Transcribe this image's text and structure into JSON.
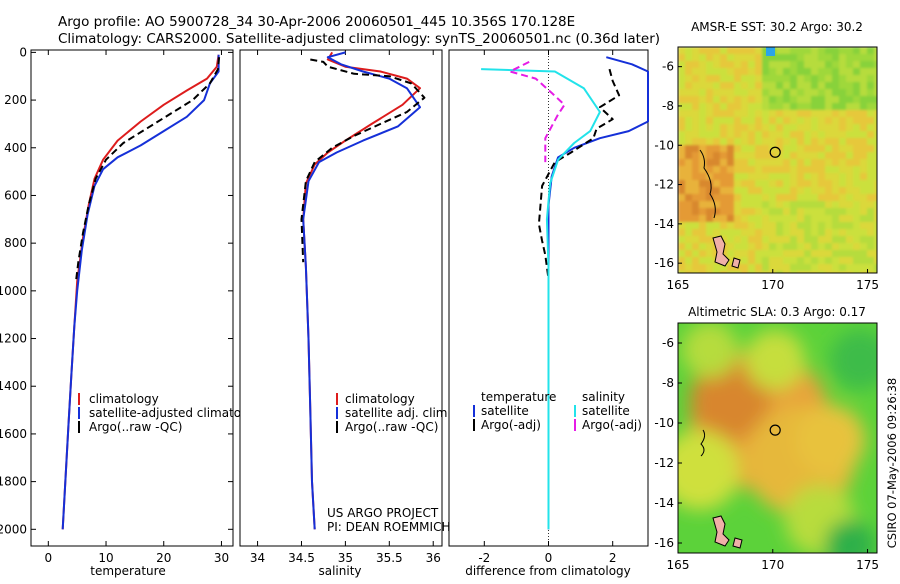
{
  "header": {
    "line1": "Argo profile: AO 5900728_34 30-Apr-2006 20060501_445 10.356S 170.128E",
    "line2": "Climatology: CARS2000. Satellite-adjusted climatology: synTS_20060501.nc (0.36d later)"
  },
  "credit": {
    "project": "US ARGO PROJECT",
    "pi": "PI: DEAN ROEMMICH",
    "stamp": "CSIRO 07-May-2006 09:26:38"
  },
  "colors": {
    "climatology": "#dd1c1c",
    "satellite": "#1530d8",
    "argo": "#000000",
    "sat_salinity": "#22e3ea",
    "argo_salinity": "#e61ce6"
  },
  "chart_data": [
    {
      "type": "line",
      "xlabel": "temperature",
      "xticks": [
        "0",
        "10",
        "20",
        "30"
      ],
      "yticks": [
        "0",
        "200",
        "400",
        "600",
        "800",
        "1000",
        "1200",
        "1400",
        "1600",
        "1800",
        "2000"
      ],
      "xlim": [
        -3,
        32
      ],
      "ylim": [
        2070,
        -10
      ],
      "legend": [
        "climatology",
        "satellite-adjusted climatolog",
        "Argo(..raw -QC)"
      ],
      "series": [
        {
          "name": "climatology",
          "color": "#dd1c1c",
          "dash": false,
          "x": [
            29.5,
            29.2,
            27.5,
            24,
            20,
            16,
            12,
            9.5,
            8,
            7,
            6,
            5,
            4.5,
            4,
            3.5,
            3,
            2.5
          ],
          "y": [
            10,
            60,
            110,
            160,
            220,
            290,
            370,
            450,
            530,
            640,
            780,
            960,
            1150,
            1350,
            1560,
            1780,
            2000
          ]
        },
        {
          "name": "satellite-adjusted climatolog",
          "color": "#1530d8",
          "dash": false,
          "x": [
            29.5,
            29.5,
            28,
            27,
            24,
            20,
            16,
            12,
            9.5,
            8,
            6.8,
            5.8,
            5,
            4.5,
            4,
            3.5,
            3,
            2.5
          ],
          "y": [
            10,
            80,
            130,
            200,
            270,
            330,
            390,
            440,
            490,
            560,
            680,
            830,
            1000,
            1150,
            1350,
            1560,
            1780,
            2000
          ]
        },
        {
          "name": "Argo(..raw -QC)",
          "color": "#000000",
          "dash": true,
          "x": [
            29.6,
            29.4,
            28,
            25,
            21,
            17,
            13,
            10,
            8.2,
            7,
            6,
            5.2,
            4.8
          ],
          "y": [
            20,
            70,
            130,
            200,
            260,
            320,
            380,
            450,
            530,
            640,
            760,
            880,
            960
          ]
        }
      ]
    },
    {
      "type": "line",
      "xlabel": "salinity",
      "xticks": [
        "34",
        "34.5",
        "35",
        "35.5",
        "36"
      ],
      "ylim": [
        2070,
        -10
      ],
      "xlim": [
        33.8,
        36.1
      ],
      "legend": [
        "climatology",
        "satellite adj. clim.",
        "Argo(..raw -QC)"
      ],
      "series": [
        {
          "name": "climatology",
          "color": "#dd1c1c",
          "dash": false,
          "x": [
            34.85,
            34.8,
            35.0,
            35.4,
            35.7,
            35.85,
            35.65,
            35.3,
            35.0,
            34.8,
            34.65,
            34.55,
            34.52,
            34.55,
            34.58,
            34.6,
            34.62,
            34.65
          ],
          "y": [
            0,
            30,
            60,
            80,
            110,
            150,
            220,
            300,
            370,
            420,
            470,
            550,
            700,
            900,
            1200,
            1500,
            1800,
            2000
          ]
        },
        {
          "name": "satellite adj. clim.",
          "color": "#1530d8",
          "dash": false,
          "x": [
            35.0,
            34.8,
            34.95,
            35.2,
            35.5,
            35.7,
            35.85,
            35.6,
            35.2,
            34.9,
            34.7,
            34.58,
            34.52,
            34.55,
            34.58,
            34.6,
            34.62,
            34.65
          ],
          "y": [
            0,
            20,
            50,
            80,
            110,
            150,
            230,
            310,
            370,
            420,
            460,
            540,
            700,
            900,
            1200,
            1500,
            1800,
            2000
          ]
        },
        {
          "name": "Argo(..raw -QC)",
          "color": "#000000",
          "dash": true,
          "x": [
            34.6,
            34.75,
            34.8,
            35.1,
            35.5,
            35.75,
            35.9,
            35.7,
            35.4,
            35.1,
            34.85,
            34.65,
            34.55,
            34.5,
            34.52
          ],
          "y": [
            30,
            40,
            60,
            90,
            100,
            130,
            190,
            250,
            300,
            350,
            400,
            460,
            540,
            700,
            880
          ]
        }
      ]
    },
    {
      "type": "line",
      "xlabel": "difference from climatology",
      "xticks": [
        "-2",
        "0",
        "2"
      ],
      "xlim": [
        -3.1,
        3.1
      ],
      "ylim": [
        2070,
        -10
      ],
      "legend_groups": [
        {
          "title": "temperature",
          "items": [
            "satellite",
            "Argo(-adj)"
          ]
        },
        {
          "title": "salinity",
          "items": [
            "satellite",
            "Argo(-adj)"
          ]
        }
      ],
      "series": [
        {
          "name": "satellite",
          "group": "temperature",
          "color": "#1530d8",
          "dash": false,
          "x": [
            1.8,
            2.6,
            3.1,
            3.1,
            2.5,
            1.6,
            0.8,
            0.3,
            0.1,
            0,
            0,
            0,
            0,
            0
          ],
          "y": [
            20,
            50,
            80,
            290,
            330,
            360,
            400,
            440,
            520,
            640,
            900,
            1200,
            1600,
            2000
          ]
        },
        {
          "name": "Argo(-adj)",
          "group": "temperature",
          "color": "#000000",
          "dash": true,
          "x": [
            1.9,
            2.0,
            2.2,
            1.6,
            2.0,
            1.5,
            1.4,
            0.7,
            0.2,
            -0.2,
            -0.3,
            -0.2,
            -0.1,
            0
          ],
          "y": [
            70,
            120,
            180,
            230,
            280,
            320,
            360,
            420,
            460,
            560,
            720,
            790,
            850,
            950
          ]
        },
        {
          "name": "satellite",
          "group": "salinity",
          "color": "#22e3ea",
          "dash": false,
          "x": [
            -2.1,
            0.2,
            1.1,
            1.6,
            1.3,
            0.8,
            0.3,
            0.05,
            -0.05,
            0,
            0,
            0
          ],
          "y": [
            70,
            80,
            150,
            250,
            330,
            380,
            450,
            550,
            700,
            900,
            1200,
            2000
          ]
        },
        {
          "name": "Argo(-adj)",
          "group": "salinity",
          "color": "#e61ce6",
          "dash": true,
          "x": [
            -0.6,
            -1.2,
            -0.4,
            0.1,
            0.5,
            0.3,
            -0.1,
            -0.1
          ],
          "y": [
            40,
            80,
            110,
            170,
            220,
            260,
            360,
            460
          ]
        }
      ]
    },
    {
      "type": "heatmap",
      "title": "AMSR-E SST: 30.2 Argo: 30.2",
      "xticks": [
        "165",
        "170",
        "175"
      ],
      "yticks": [
        "-6",
        "-8",
        "-10",
        "-12",
        "-14",
        "-16"
      ],
      "xlim": [
        165,
        175.5
      ],
      "ylim": [
        -16.5,
        -5
      ],
      "marker": {
        "lon": 170.128,
        "lat": -10.356
      }
    },
    {
      "type": "heatmap",
      "title": "Altimetric SLA: 0.3 Argo: 0.17",
      "xticks": [
        "165",
        "170",
        "175"
      ],
      "yticks": [
        "-6",
        "-8",
        "-10",
        "-12",
        "-14",
        "-16"
      ],
      "xlim": [
        165,
        175.5
      ],
      "ylim": [
        -16.5,
        -5
      ],
      "marker": {
        "lon": 170.128,
        "lat": -10.356
      }
    }
  ]
}
